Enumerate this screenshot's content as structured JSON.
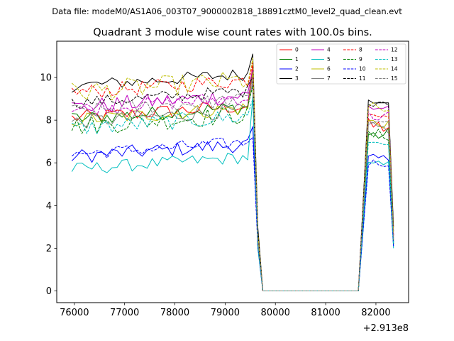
{
  "header": {
    "data_file": "Data file: modeM0/AS1A06_003T07_9000002818_18891cztM0_level2_quad_clean.evt"
  },
  "chart_data": {
    "type": "line",
    "title": "Quadrant 3 module wise count rates with 100.0s bins.",
    "xlabel": "",
    "ylabel": "",
    "offset_text": "+2.913e8",
    "xlim": [
      75650,
      82650
    ],
    "ylim": [
      -0.55,
      11.7
    ],
    "x_ticks": [
      76000,
      77000,
      78000,
      79000,
      80000,
      81000,
      82000
    ],
    "x_tick_labels": [
      "76000",
      "77000",
      "78000",
      "79000",
      "80000",
      "81000",
      "82000"
    ],
    "y_ticks": [
      0,
      2,
      4,
      6,
      8,
      10
    ],
    "y_tick_labels": [
      "0",
      "2",
      "4",
      "6",
      "8",
      "10"
    ],
    "grid": false,
    "legend_position": "top-right",
    "legend_columns": 4,
    "x_start": 75950,
    "bin": 100,
    "gti1_end": 79650,
    "gap_start": 79750,
    "gap_end": 81650,
    "gti2_start": 81750,
    "x_end": 82350,
    "series": [
      {
        "name": "0",
        "color": "#ff0000",
        "dash": "solid",
        "base1": 8.1,
        "amp1": 0.35,
        "peak": 10.6,
        "base2": 7.7,
        "amp2": 0.4,
        "end": 2.4
      },
      {
        "name": "1",
        "color": "#008000",
        "dash": "solid",
        "base1": 8.05,
        "amp1": 0.35,
        "peak": 10.3,
        "base2": 7.3,
        "amp2": 0.35,
        "end": 2.2
      },
      {
        "name": "2",
        "color": "#0000ff",
        "dash": "solid",
        "base1": 6.3,
        "amp1": 0.35,
        "peak": 7.7,
        "base2": 6.2,
        "amp2": 0.2,
        "end": 2.3
      },
      {
        "name": "3",
        "color": "#000000",
        "dash": "solid",
        "base1": 9.6,
        "amp1": 0.3,
        "peak": 11.1,
        "base2": 9.0,
        "amp2": 0.25,
        "end": 3.0
      },
      {
        "name": "4",
        "color": "#bf00bf",
        "dash": "solid",
        "base1": 8.6,
        "amp1": 0.4,
        "peak": 10.4,
        "base2": 8.6,
        "amp2": 0.3,
        "end": 2.6
      },
      {
        "name": "5",
        "color": "#00bfbf",
        "dash": "solid",
        "base1": 5.7,
        "amp1": 0.3,
        "peak": 9.1,
        "base2": 5.9,
        "amp2": 0.2,
        "end": 2.0
      },
      {
        "name": "6",
        "color": "#bfbf00",
        "dash": "solid",
        "base1": 8.0,
        "amp1": 0.35,
        "peak": 10.2,
        "base2": 7.9,
        "amp2": 0.35,
        "end": 2.5
      },
      {
        "name": "7",
        "color": "#808080",
        "dash": "solid",
        "base1": 7.9,
        "amp1": 0.35,
        "peak": 9.8,
        "base2": 7.6,
        "amp2": 0.3,
        "end": 2.3
      },
      {
        "name": "8",
        "color": "#ff0000",
        "dash": "dashed",
        "base1": 9.3,
        "amp1": 0.35,
        "peak": 10.7,
        "base2": 8.4,
        "amp2": 0.3,
        "end": 2.6
      },
      {
        "name": "9",
        "color": "#008000",
        "dash": "dashed",
        "base1": 7.7,
        "amp1": 0.45,
        "peak": 9.6,
        "base2": 7.3,
        "amp2": 0.3,
        "end": 2.2
      },
      {
        "name": "10",
        "color": "#0000ff",
        "dash": "dashed",
        "base1": 6.4,
        "amp1": 0.3,
        "peak": 7.2,
        "base2": 6.0,
        "amp2": 0.2,
        "end": 2.1
      },
      {
        "name": "11",
        "color": "#000000",
        "dash": "dashed",
        "base1": 8.8,
        "amp1": 0.3,
        "peak": 10.0,
        "base2": 8.9,
        "amp2": 0.25,
        "end": 2.8
      },
      {
        "name": "12",
        "color": "#bf00bf",
        "dash": "dashed",
        "base1": 8.5,
        "amp1": 0.35,
        "peak": 10.0,
        "base2": 8.2,
        "amp2": 0.3,
        "end": 2.5
      },
      {
        "name": "13",
        "color": "#00bfbf",
        "dash": "dashed",
        "base1": 7.6,
        "amp1": 0.4,
        "peak": 9.0,
        "base2": 7.0,
        "amp2": 0.3,
        "end": 2.2
      },
      {
        "name": "14",
        "color": "#bfbf00",
        "dash": "dashed",
        "base1": 9.3,
        "amp1": 0.5,
        "peak": 10.9,
        "base2": 8.5,
        "amp2": 0.35,
        "end": 2.7
      },
      {
        "name": "15",
        "color": "#808080",
        "dash": "dashed",
        "base1": 8.4,
        "amp1": 0.35,
        "peak": 9.9,
        "base2": 8.0,
        "amp2": 0.3,
        "end": 2.4
      }
    ]
  }
}
